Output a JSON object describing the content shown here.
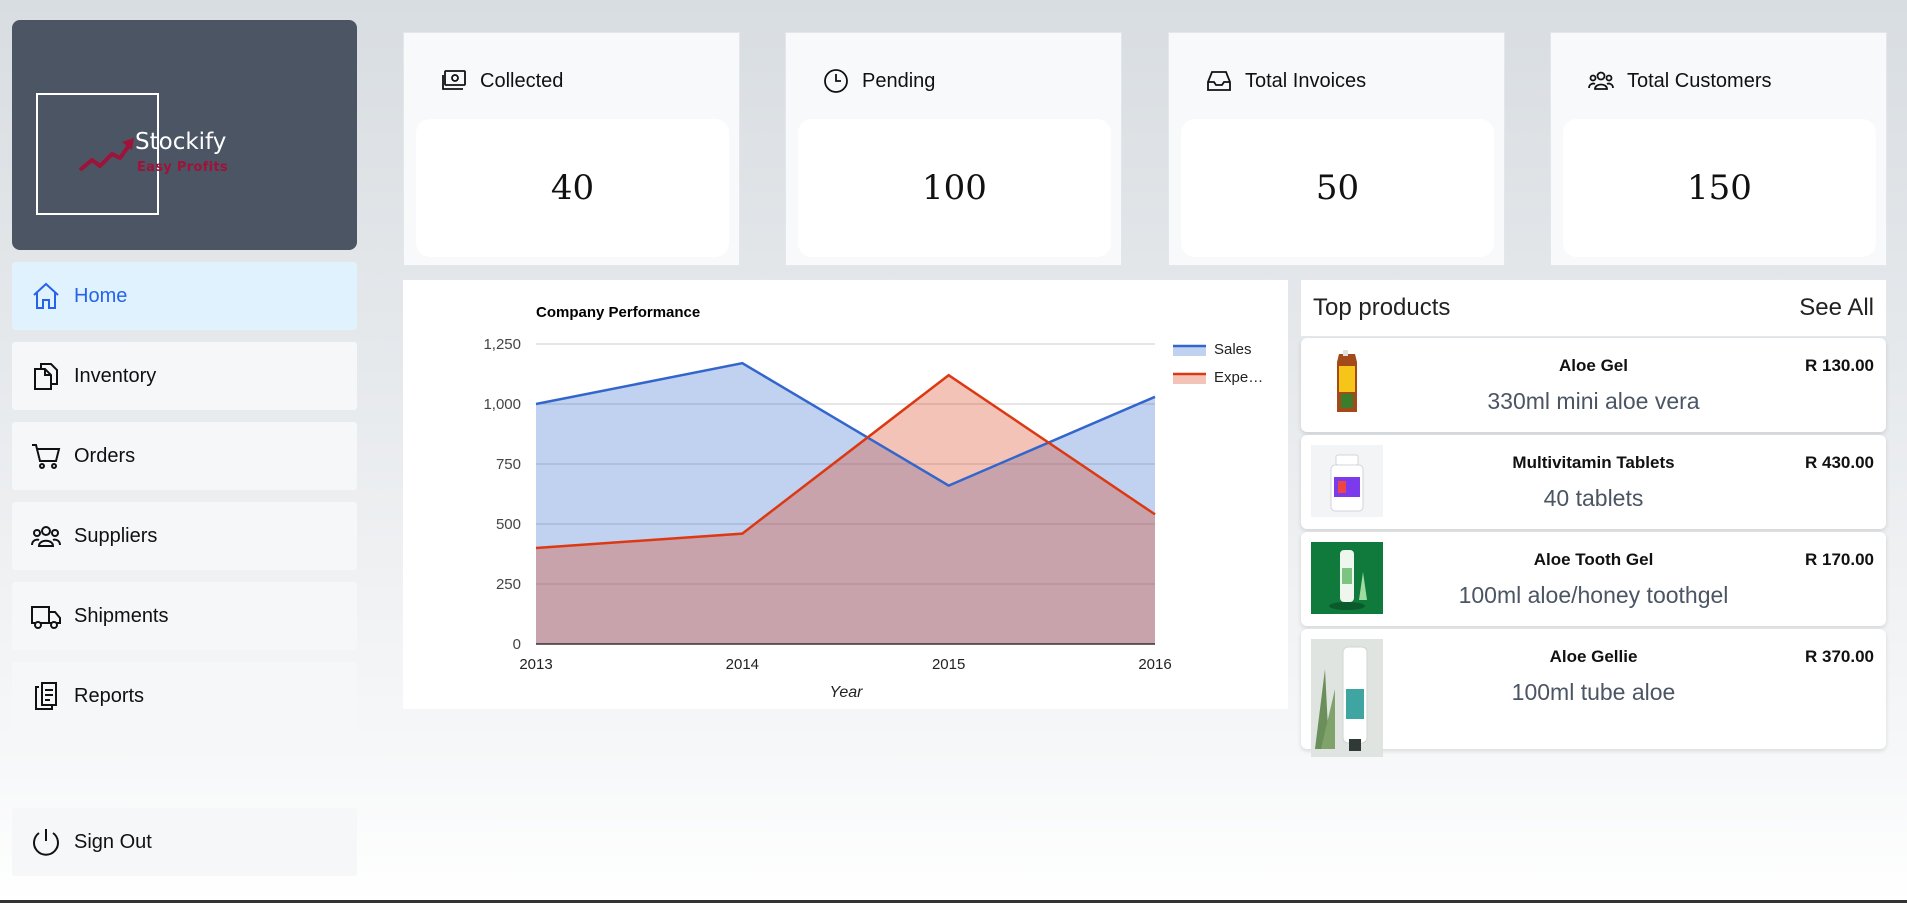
{
  "brand": {
    "name": "Stockify",
    "tagline": "Easy Profits"
  },
  "nav": {
    "items": [
      {
        "label": "Home",
        "icon": "home-icon",
        "active": true
      },
      {
        "label": "Inventory",
        "icon": "documents-icon"
      },
      {
        "label": "Orders",
        "icon": "cart-icon"
      },
      {
        "label": "Suppliers",
        "icon": "users-icon"
      },
      {
        "label": "Shipments",
        "icon": "truck-icon"
      },
      {
        "label": "Reports",
        "icon": "clipboard-icon"
      }
    ],
    "signout": "Sign Out"
  },
  "stats": [
    {
      "label": "Collected",
      "value": "40",
      "icon": "money-icon"
    },
    {
      "label": "Pending",
      "value": "100",
      "icon": "clock-icon"
    },
    {
      "label": "Total Invoices",
      "value": "50",
      "icon": "inbox-icon"
    },
    {
      "label": "Total Customers",
      "value": "150",
      "icon": "users-icon"
    }
  ],
  "chart_data": {
    "type": "area",
    "title": "Company Performance",
    "xlabel": "Year",
    "ylabel": "",
    "x": [
      "2013",
      "2014",
      "2015",
      "2016"
    ],
    "ylim": [
      0,
      1250
    ],
    "yticks": [
      "0",
      "250",
      "500",
      "750",
      "1,000",
      "1,250"
    ],
    "series": [
      {
        "name": "Sales",
        "values": [
          1000,
          1170,
          660,
          1030
        ],
        "color": "#3366cc"
      },
      {
        "name": "Expenses",
        "legend_label": "Expe…",
        "values": [
          400,
          460,
          1120,
          540
        ],
        "color": "#dc3912"
      }
    ],
    "legend": "right",
    "grid": true
  },
  "products": {
    "title": "Top products",
    "see_all": "See All",
    "items": [
      {
        "name": "Aloe Gel",
        "price": "R 130.00",
        "desc": "330ml mini aloe vera",
        "icon": "aloe-gel-pack-image"
      },
      {
        "name": "Multivitamin Tablets",
        "price": "R 430.00",
        "desc": "40 tablets",
        "icon": "vitamin-bottle-image"
      },
      {
        "name": "Aloe Tooth Gel",
        "price": "R 170.00",
        "desc": "100ml aloe/honey toothgel",
        "icon": "tooth-gel-image"
      },
      {
        "name": "Aloe Gellie",
        "price": "R 370.00",
        "desc": "100ml tube aloe",
        "icon": "aloe-tube-image"
      }
    ]
  }
}
